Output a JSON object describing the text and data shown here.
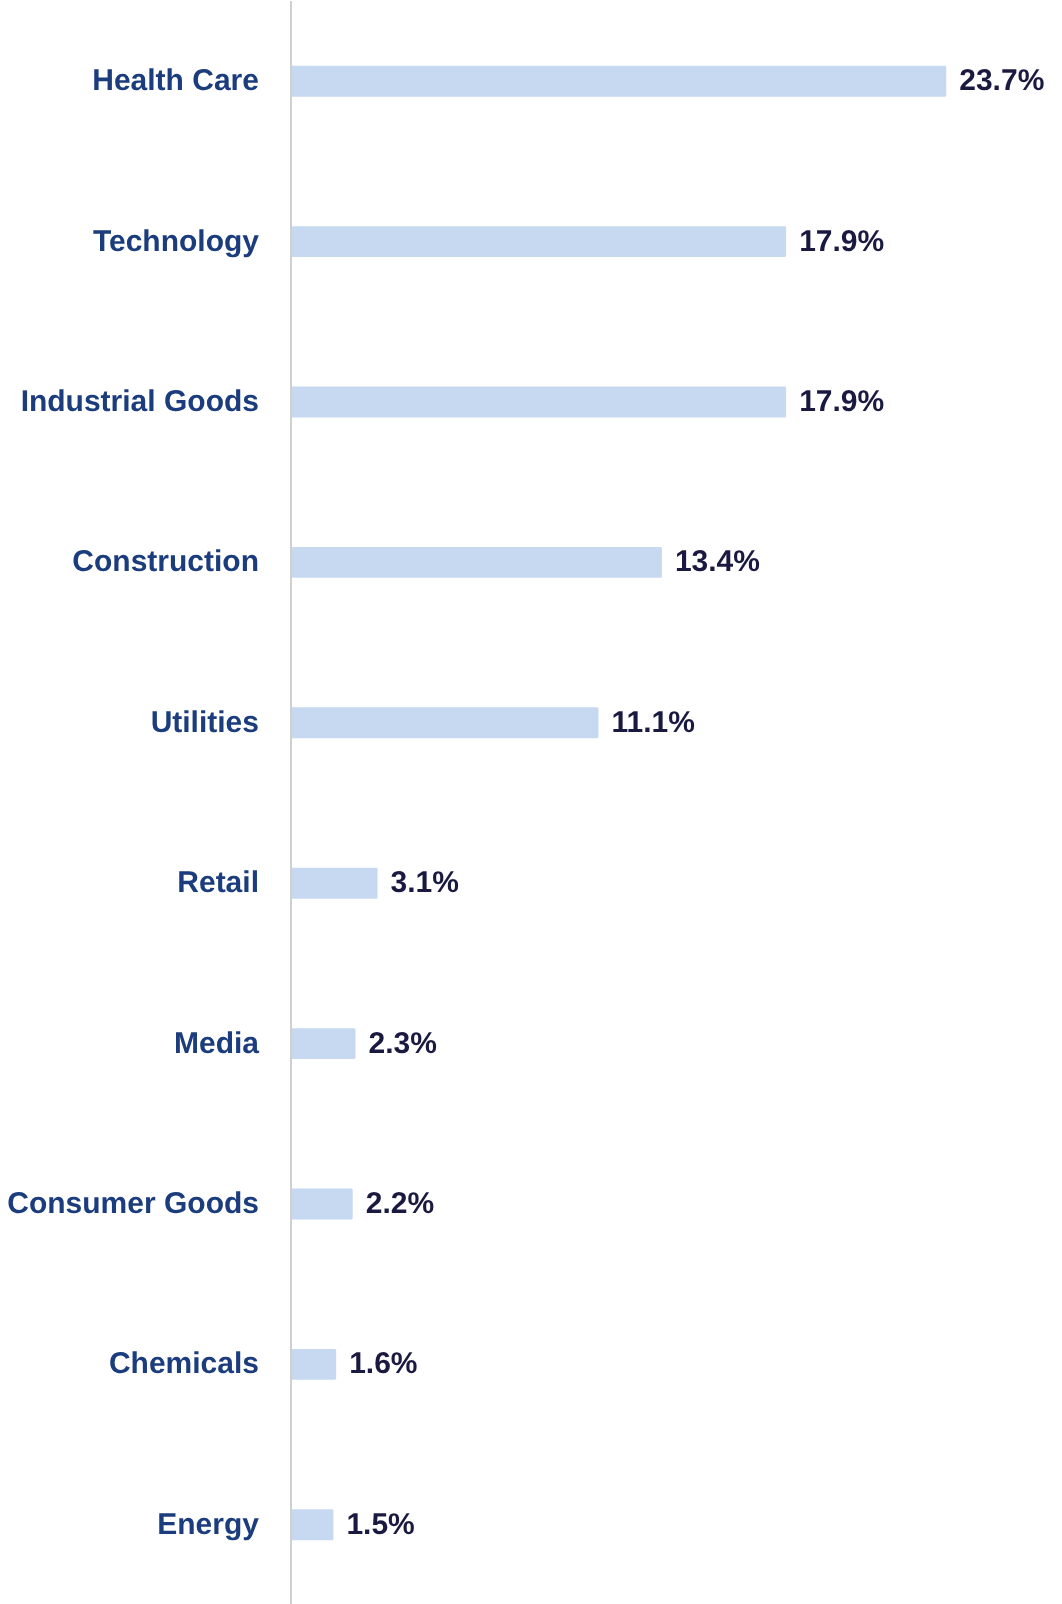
{
  "chart_data": {
    "type": "bar",
    "orientation": "horizontal",
    "categories": [
      "Health Care",
      "Technology",
      "Industrial Goods",
      "Construction",
      "Utilities",
      "Retail",
      "Media",
      "Consumer Goods",
      "Chemicals",
      "Energy"
    ],
    "values": [
      23.7,
      17.9,
      17.9,
      13.4,
      11.1,
      3.1,
      2.3,
      2.2,
      1.6,
      1.5
    ],
    "value_labels": [
      "23.7%",
      "17.9%",
      "17.9%",
      "13.4%",
      "11.1%",
      "3.1%",
      "2.3%",
      "2.2%",
      "1.6%",
      "1.5%"
    ],
    "color": "#c6d9f1"
  }
}
